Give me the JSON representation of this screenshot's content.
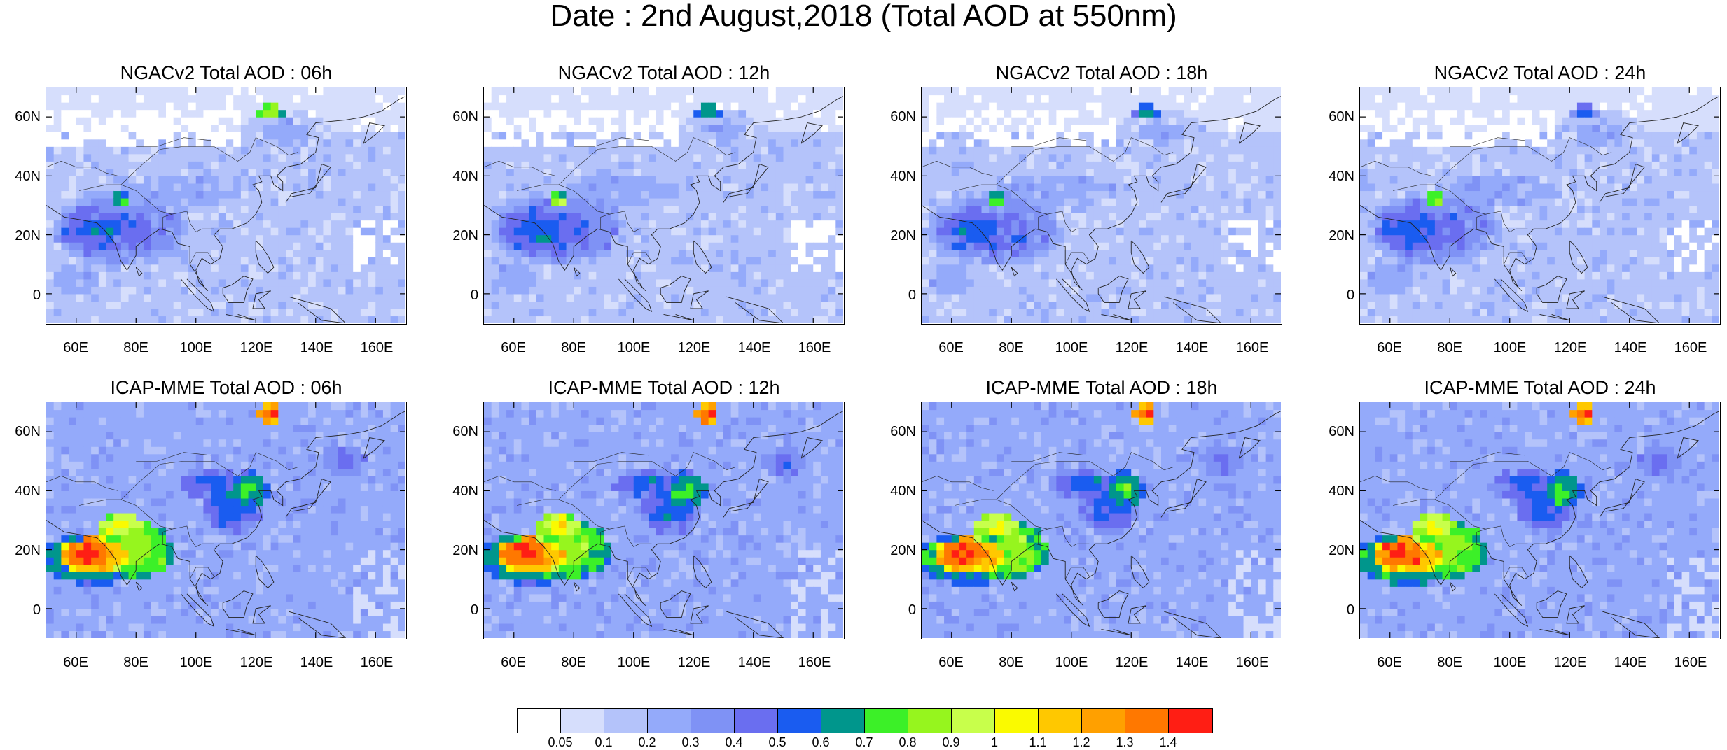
{
  "title": "Date : 2nd August,2018 (Total AOD at 550nm)",
  "panels": [
    {
      "title": "NGACv2 Total AOD : 06h",
      "model": "NGACv2",
      "hour": "06h"
    },
    {
      "title": "NGACv2 Total AOD : 12h",
      "model": "NGACv2",
      "hour": "12h"
    },
    {
      "title": "NGACv2 Total AOD : 18h",
      "model": "NGACv2",
      "hour": "18h"
    },
    {
      "title": "NGACv2 Total AOD : 24h",
      "model": "NGACv2",
      "hour": "24h"
    },
    {
      "title": "ICAP-MME Total AOD : 06h",
      "model": "ICAP-MME",
      "hour": "06h"
    },
    {
      "title": "ICAP-MME Total AOD : 12h",
      "model": "ICAP-MME",
      "hour": "12h"
    },
    {
      "title": "ICAP-MME Total AOD : 18h",
      "model": "ICAP-MME",
      "hour": "18h"
    },
    {
      "title": "ICAP-MME Total AOD : 24h",
      "model": "ICAP-MME",
      "hour": "24h"
    }
  ],
  "map": {
    "lat_labels": [
      "60N",
      "40N",
      "20N",
      "0"
    ],
    "lon_labels": [
      "60E",
      "80E",
      "100E",
      "120E",
      "140E",
      "160E"
    ]
  },
  "colorbar": {
    "colors": [
      "#ffffff",
      "#d6defc",
      "#b4c3fa",
      "#94aafa",
      "#7f92f5",
      "#6a6ef0",
      "#1a5cf0",
      "#00968c",
      "#3cf028",
      "#96f51e",
      "#c8ff4b",
      "#fafa00",
      "#ffc800",
      "#ffa000",
      "#ff7800",
      "#ff1e14"
    ],
    "labels": [
      "0.05",
      "0.1",
      "0.2",
      "0.3",
      "0.4",
      "0.5",
      "0.6",
      "0.7",
      "0.8",
      "0.9",
      "1",
      "1.1",
      "1.2",
      "1.3",
      "1.4"
    ]
  }
}
